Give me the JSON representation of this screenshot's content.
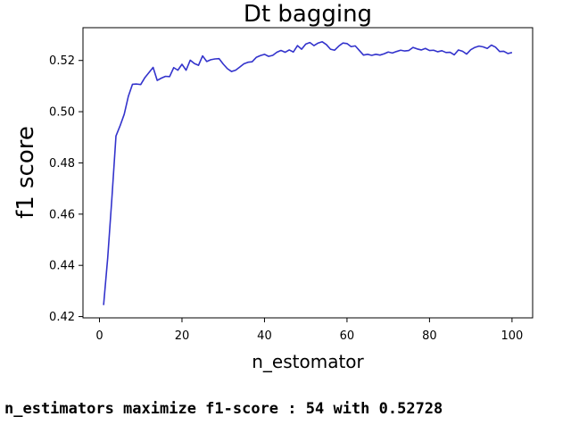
{
  "chart_data": {
    "type": "line",
    "title": "Dt bagging",
    "xlabel": "n_estomator",
    "ylabel": "f1 score",
    "xlim": [
      -4,
      105
    ],
    "ylim": [
      0.4195,
      0.5328
    ],
    "xticks": [
      0,
      20,
      40,
      60,
      80,
      100
    ],
    "yticks": [
      0.42,
      0.44,
      0.46,
      0.48,
      0.5,
      0.52
    ],
    "xtick_labels": [
      "0",
      "20",
      "40",
      "60",
      "80",
      "100"
    ],
    "ytick_labels": [
      "0.42",
      "0.44",
      "0.46",
      "0.48",
      "0.50",
      "0.52"
    ],
    "grid": false,
    "series": [
      {
        "color": "#3333cc",
        "x": [
          1,
          2,
          3,
          4,
          5,
          6,
          7,
          8,
          9,
          10,
          11,
          12,
          13,
          14,
          15,
          16,
          17,
          18,
          19,
          20,
          21,
          22,
          23,
          24,
          25,
          26,
          27,
          28,
          29,
          30,
          31,
          32,
          33,
          34,
          35,
          36,
          37,
          38,
          39,
          40,
          41,
          42,
          43,
          44,
          45,
          46,
          47,
          48,
          49,
          50,
          51,
          52,
          53,
          54,
          55,
          56,
          57,
          58,
          59,
          60,
          61,
          62,
          63,
          64,
          65,
          66,
          67,
          68,
          69,
          70,
          71,
          72,
          73,
          74,
          75,
          76,
          77,
          78,
          79,
          80,
          81,
          82,
          83,
          84,
          85,
          86,
          87,
          88,
          89,
          90,
          91,
          92,
          93,
          94,
          95,
          96,
          97,
          98,
          99,
          100
        ],
        "y": [
          0.4245,
          0.443,
          0.466,
          0.4905,
          0.4945,
          0.499,
          0.506,
          0.5107,
          0.5108,
          0.5106,
          0.5133,
          0.5153,
          0.5173,
          0.5122,
          0.5131,
          0.5138,
          0.5137,
          0.5172,
          0.5162,
          0.5185,
          0.5162,
          0.5201,
          0.5188,
          0.5181,
          0.5218,
          0.5196,
          0.5203,
          0.5206,
          0.5207,
          0.5186,
          0.5168,
          0.5157,
          0.5162,
          0.5174,
          0.5187,
          0.5193,
          0.5195,
          0.5212,
          0.5219,
          0.5224,
          0.5216,
          0.522,
          0.5232,
          0.5239,
          0.5232,
          0.5241,
          0.5233,
          0.5258,
          0.5244,
          0.5264,
          0.527,
          0.5258,
          0.5268,
          0.5273,
          0.5262,
          0.5244,
          0.524,
          0.5256,
          0.5268,
          0.5266,
          0.5254,
          0.5257,
          0.5239,
          0.5221,
          0.5224,
          0.522,
          0.5224,
          0.5221,
          0.5226,
          0.5233,
          0.5229,
          0.5235,
          0.524,
          0.5237,
          0.5239,
          0.5251,
          0.5245,
          0.5241,
          0.5247,
          0.5239,
          0.524,
          0.5234,
          0.5238,
          0.5231,
          0.5232,
          0.5222,
          0.5241,
          0.5236,
          0.5225,
          0.5242,
          0.5251,
          0.5256,
          0.5253,
          0.5247,
          0.526,
          0.5252,
          0.5235,
          0.5236,
          0.5227,
          0.5231
        ]
      }
    ]
  },
  "summary_line": "n_estimators maximize f1-score : 54 with 0.52728"
}
